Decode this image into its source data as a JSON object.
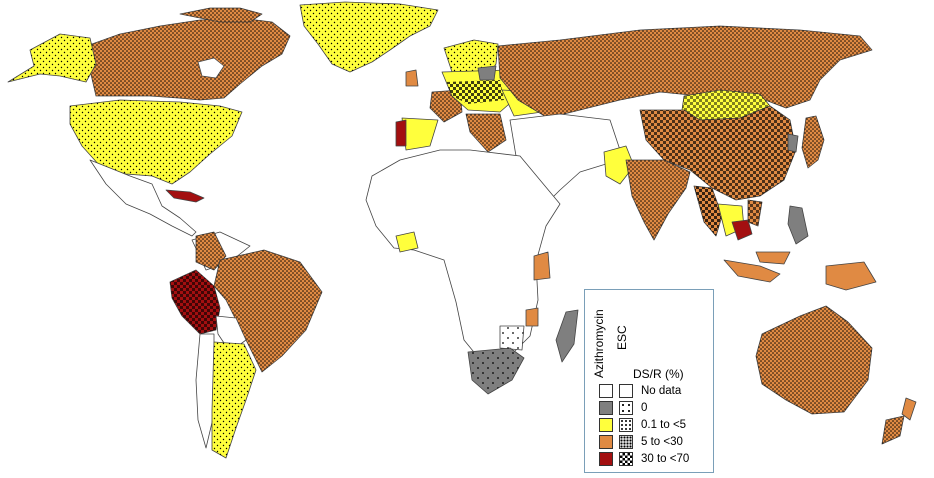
{
  "colors": {
    "no_data": "#ffffff",
    "zero": "#7f7f7f",
    "low": "#ffff3c",
    "mid": "#e08a43",
    "high": "#a30f10",
    "border": "#444444",
    "legend_border": "#7a9fb8"
  },
  "legend": {
    "azithro_label": "Azithromycin",
    "esc_label": "ESC",
    "title": "DS/R (%)",
    "items": [
      {
        "label": "No data",
        "color_key": "no_data",
        "pattern": "none"
      },
      {
        "label": "0",
        "color_key": "zero",
        "pattern": "sparse-dots"
      },
      {
        "label": "0.1 to <5",
        "color_key": "low",
        "pattern": "fine-dots"
      },
      {
        "label": "5 to <30",
        "color_key": "mid",
        "pattern": "dense-dots"
      },
      {
        "label": "30 to <70",
        "color_key": "high",
        "pattern": "checker"
      }
    ]
  }
}
